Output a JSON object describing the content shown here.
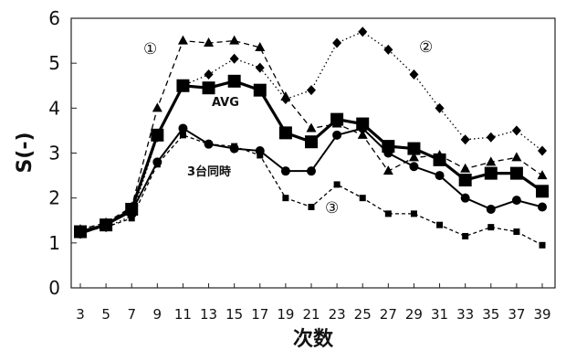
{
  "chart_data": {
    "type": "line",
    "xlabel": "次数",
    "ylabel": "S(-)",
    "x": [
      3,
      5,
      7,
      9,
      11,
      13,
      15,
      17,
      19,
      21,
      23,
      25,
      27,
      29,
      31,
      33,
      35,
      37,
      39
    ],
    "ylim": [
      0,
      6
    ],
    "yticks": [
      0,
      1,
      2,
      3,
      4,
      5,
      6
    ],
    "grid": false,
    "series": [
      {
        "name": "AVG",
        "style": "solid-thick",
        "marker": "square-large",
        "color": "#000000",
        "values": [
          1.25,
          1.4,
          1.75,
          3.4,
          4.5,
          4.45,
          4.6,
          4.4,
          3.45,
          3.25,
          3.75,
          3.65,
          3.15,
          3.1,
          2.85,
          2.4,
          2.55,
          2.55,
          2.15
        ]
      },
      {
        "name": "3台同時",
        "style": "solid",
        "marker": "circle",
        "color": "#000000",
        "values": [
          1.2,
          1.4,
          1.7,
          2.8,
          3.55,
          3.2,
          3.1,
          3.05,
          2.6,
          2.6,
          3.4,
          3.55,
          3.0,
          2.7,
          2.5,
          2.0,
          1.75,
          1.95,
          1.8
        ]
      },
      {
        "name": "①",
        "style": "dashed",
        "marker": "triangle",
        "color": "#000000",
        "values": [
          1.3,
          1.45,
          1.8,
          4.0,
          5.5,
          5.45,
          5.5,
          5.35,
          4.25,
          3.55,
          3.65,
          3.4,
          2.6,
          2.9,
          2.95,
          2.65,
          2.8,
          2.9,
          2.5
        ]
      },
      {
        "name": "②",
        "style": "dotted",
        "marker": "diamond",
        "color": "#000000",
        "values": [
          1.25,
          1.35,
          1.6,
          3.35,
          4.5,
          4.75,
          5.1,
          4.9,
          4.2,
          4.4,
          5.45,
          5.7,
          5.3,
          4.75,
          4.0,
          3.3,
          3.35,
          3.5,
          3.05
        ]
      },
      {
        "name": "③",
        "style": "dashed-fine",
        "marker": "square-small",
        "color": "#000000",
        "values": [
          1.25,
          1.35,
          1.55,
          2.75,
          3.4,
          3.2,
          3.15,
          2.95,
          2.0,
          1.8,
          2.3,
          2.0,
          1.65,
          1.65,
          1.4,
          1.15,
          1.35,
          1.25,
          0.95
        ]
      }
    ],
    "annotations": {
      "label_avg": "AVG",
      "label_simul": "3台同時",
      "label_1": "①",
      "label_2": "②",
      "label_3": "③"
    }
  }
}
